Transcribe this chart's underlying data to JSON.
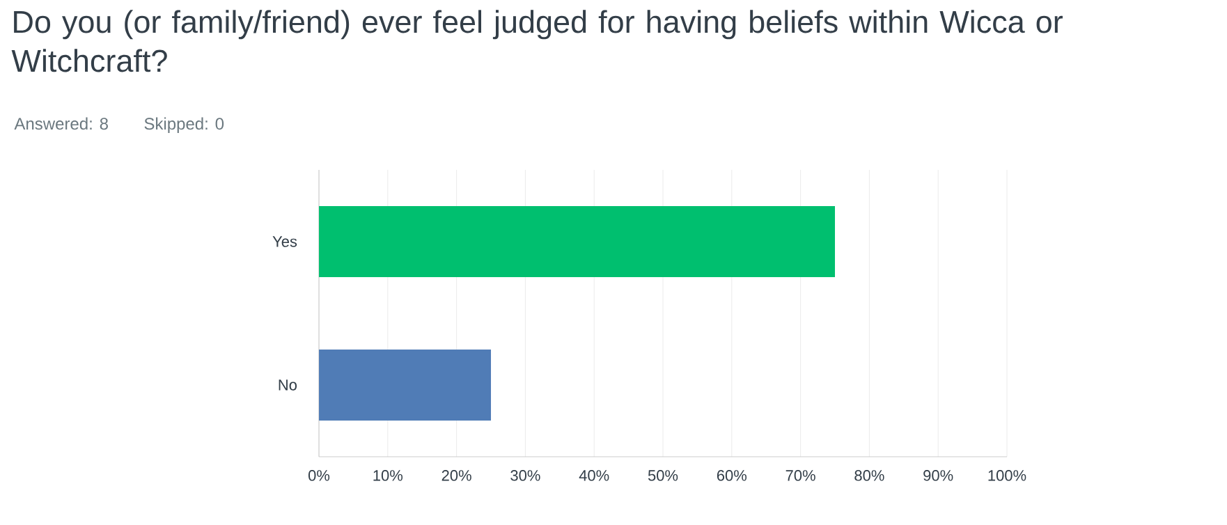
{
  "chart_data": {
    "type": "bar",
    "orientation": "horizontal",
    "title": "Do you (or family/friend) ever feel judged for having beliefs within Wicca or Witchcraft?",
    "subtitle": "Answered: 8",
    "annotations": [
      "Skipped: 0"
    ],
    "categories": [
      "Yes",
      "No"
    ],
    "values": [
      75,
      25
    ],
    "colors": [
      "#00bf6f",
      "#507cb6"
    ],
    "xlim": [
      0,
      100
    ],
    "xticks": [
      {
        "value": 0,
        "label": "0%"
      },
      {
        "value": 10,
        "label": "10%"
      },
      {
        "value": 20,
        "label": "20%"
      },
      {
        "value": 30,
        "label": "30%"
      },
      {
        "value": 40,
        "label": "40%"
      },
      {
        "value": 50,
        "label": "50%"
      },
      {
        "value": 60,
        "label": "60%"
      },
      {
        "value": 70,
        "label": "70%"
      },
      {
        "value": 80,
        "label": "80%"
      },
      {
        "value": 90,
        "label": "90%"
      },
      {
        "value": 100,
        "label": "100%"
      }
    ],
    "grid": "x"
  }
}
